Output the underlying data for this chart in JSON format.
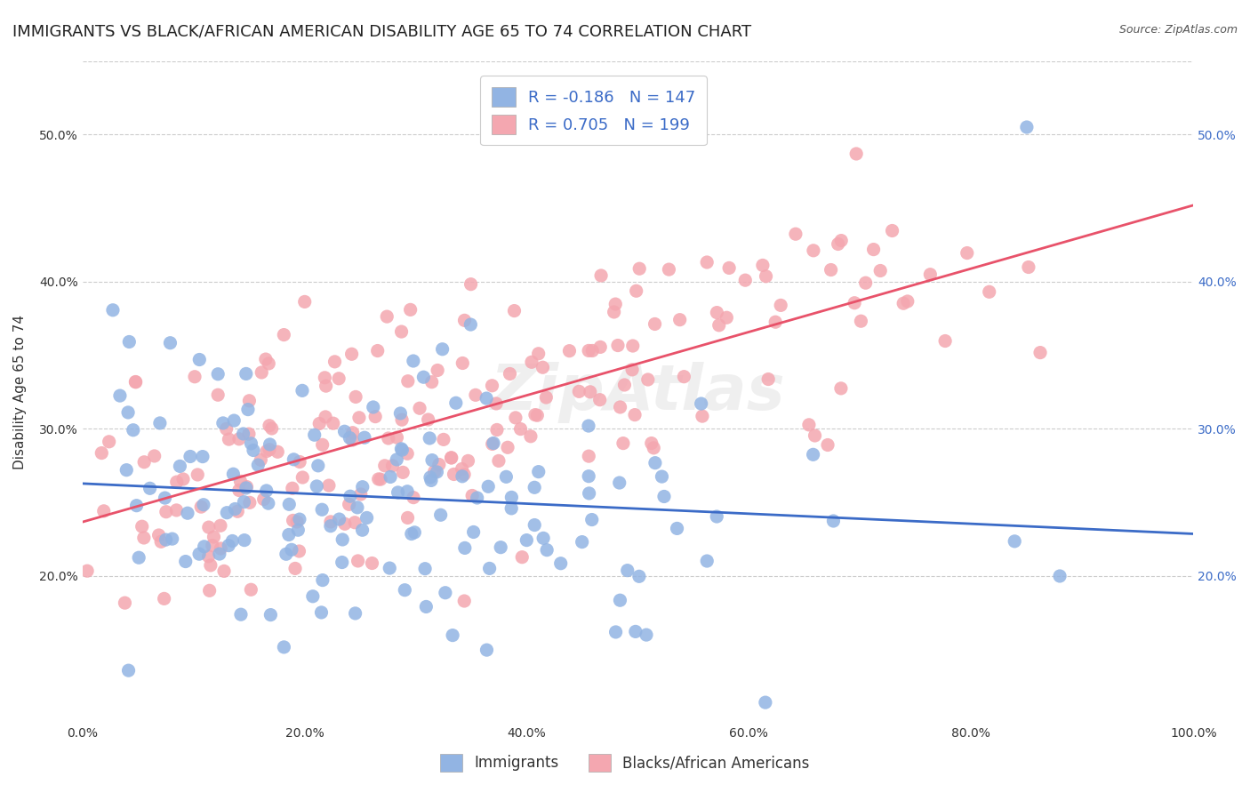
{
  "title": "IMMIGRANTS VS BLACK/AFRICAN AMERICAN DISABILITY AGE 65 TO 74 CORRELATION CHART",
  "source": "Source: ZipAtlas.com",
  "ylabel": "Disability Age 65 to 74",
  "xlabel": "",
  "immigrants_R": -0.186,
  "immigrants_N": 147,
  "blacks_R": 0.705,
  "blacks_N": 199,
  "x_min": 0.0,
  "x_max": 1.0,
  "y_min": 0.1,
  "y_max": 0.55,
  "immigrants_color": "#92b4e3",
  "immigrants_line_color": "#3b6bc7",
  "blacks_color": "#f4a7b0",
  "blacks_line_color": "#e8526a",
  "legend_text_color": "#3b6bc7",
  "background_color": "#ffffff",
  "grid_color": "#cccccc",
  "watermark": "ZipAtlas",
  "title_fontsize": 13,
  "axis_label_fontsize": 11,
  "tick_fontsize": 10,
  "legend_fontsize": 13
}
